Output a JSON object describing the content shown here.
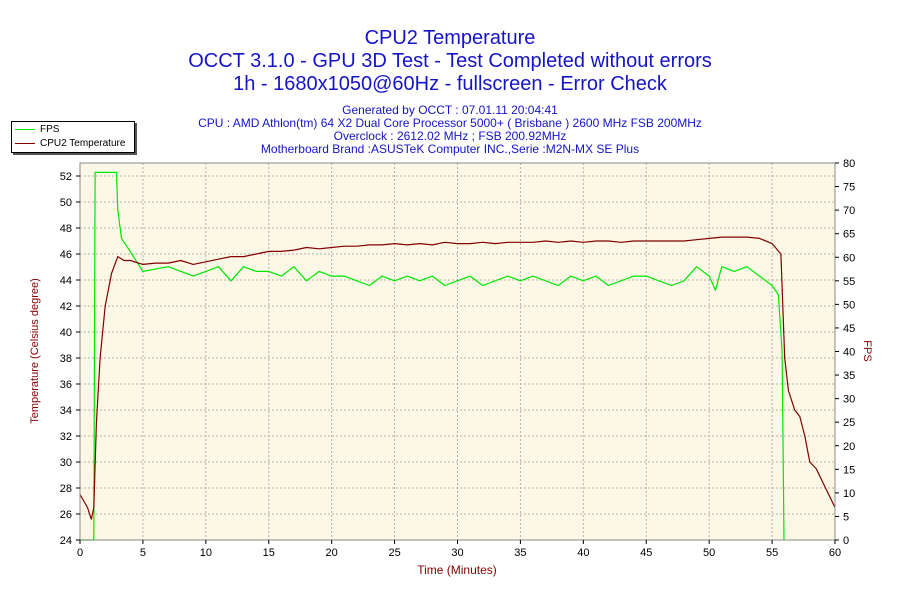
{
  "header": {
    "title": "CPU2 Temperature",
    "subtitle1": "OCCT 3.1.0 - GPU 3D Test - Test Completed without errors",
    "subtitle2": "1h - 1680x1050@60Hz - fullscreen - Error Check"
  },
  "info": {
    "generated": "Generated by OCCT : 07.01.11 20:04:41",
    "cpu": "CPU : AMD Athlon(tm) 64 X2 Dual Core Processor 5000+ ( Brisbane ) 2600 MHz FSB 200MHz",
    "overclock": "Overclock : 2612.02 MHz ; FSB 200.92MHz",
    "motherboard": "Motherboard Brand :ASUSTeK Computer INC.,Serie :M2N-MX SE Plus"
  },
  "colors": {
    "fps": "#00e600",
    "temp": "#800000",
    "plot_bg": "#fdf8e6",
    "title": "#1414c8"
  },
  "chart_data": {
    "type": "line",
    "xlabel": "Time (Minutes)",
    "ylabel": "Temperature (Celsius degree)",
    "y2label": "FPS",
    "xlim": [
      0,
      60
    ],
    "ylim": [
      24,
      53
    ],
    "y2lim": [
      0,
      80
    ],
    "grid": true,
    "legend_position": "top-left",
    "x_ticks": [
      "0",
      "5",
      "10",
      "15",
      "20",
      "25",
      "30",
      "35",
      "40",
      "45",
      "50",
      "55",
      "60"
    ],
    "y_ticks": [
      "24",
      "26",
      "28",
      "30",
      "32",
      "34",
      "36",
      "38",
      "40",
      "42",
      "44",
      "46",
      "48",
      "50",
      "52"
    ],
    "y2_ticks": [
      "0",
      "5",
      "10",
      "15",
      "20",
      "25",
      "30",
      "35",
      "40",
      "45",
      "50",
      "55",
      "60",
      "65",
      "70",
      "75",
      "80"
    ],
    "series": [
      {
        "name": "FPS",
        "axis": "right",
        "points": [
          [
            0,
            0
          ],
          [
            1.1,
            0
          ],
          [
            1.2,
            78
          ],
          [
            2.9,
            78
          ],
          [
            3.0,
            70
          ],
          [
            3.3,
            64
          ],
          [
            3.8,
            62
          ],
          [
            5,
            57
          ],
          [
            7,
            58
          ],
          [
            9,
            56
          ],
          [
            10,
            57
          ],
          [
            11,
            58
          ],
          [
            12,
            55
          ],
          [
            13,
            58
          ],
          [
            14,
            57
          ],
          [
            15,
            57
          ],
          [
            16,
            56
          ],
          [
            17,
            58
          ],
          [
            18,
            55
          ],
          [
            19,
            57
          ],
          [
            20,
            56
          ],
          [
            21,
            56
          ],
          [
            22,
            55
          ],
          [
            23,
            54
          ],
          [
            24,
            56
          ],
          [
            25,
            55
          ],
          [
            26,
            56
          ],
          [
            27,
            55
          ],
          [
            28,
            56
          ],
          [
            29,
            54
          ],
          [
            30,
            55
          ],
          [
            31,
            56
          ],
          [
            32,
            54
          ],
          [
            33,
            55
          ],
          [
            34,
            56
          ],
          [
            35,
            55
          ],
          [
            36,
            56
          ],
          [
            37,
            55
          ],
          [
            38,
            54
          ],
          [
            39,
            56
          ],
          [
            40,
            55
          ],
          [
            41,
            56
          ],
          [
            42,
            54
          ],
          [
            43,
            55
          ],
          [
            44,
            56
          ],
          [
            45,
            56
          ],
          [
            46,
            55
          ],
          [
            47,
            54
          ],
          [
            48,
            55
          ],
          [
            49,
            58
          ],
          [
            50,
            56
          ],
          [
            50.5,
            53
          ],
          [
            51,
            58
          ],
          [
            52,
            57
          ],
          [
            53,
            58
          ],
          [
            54,
            56
          ],
          [
            55,
            54
          ],
          [
            55.5,
            52
          ],
          [
            55.8,
            40
          ],
          [
            55.95,
            0
          ]
        ]
      },
      {
        "name": "CPU2 Temperature",
        "axis": "left",
        "points": [
          [
            0,
            27.5
          ],
          [
            0.3,
            27
          ],
          [
            0.6,
            26.5
          ],
          [
            0.9,
            25.6
          ],
          [
            1.1,
            26.5
          ],
          [
            1.3,
            33
          ],
          [
            1.6,
            38
          ],
          [
            2.0,
            42
          ],
          [
            2.5,
            44.5
          ],
          [
            3.0,
            45.8
          ],
          [
            3.5,
            45.5
          ],
          [
            4,
            45.5
          ],
          [
            5,
            45.2
          ],
          [
            6,
            45.3
          ],
          [
            7,
            45.3
          ],
          [
            8,
            45.5
          ],
          [
            9,
            45.2
          ],
          [
            10,
            45.4
          ],
          [
            11,
            45.6
          ],
          [
            12,
            45.8
          ],
          [
            13,
            45.8
          ],
          [
            14,
            46.0
          ],
          [
            15,
            46.2
          ],
          [
            16,
            46.2
          ],
          [
            17,
            46.3
          ],
          [
            18,
            46.5
          ],
          [
            19,
            46.4
          ],
          [
            20,
            46.5
          ],
          [
            21,
            46.6
          ],
          [
            22,
            46.6
          ],
          [
            23,
            46.7
          ],
          [
            24,
            46.7
          ],
          [
            25,
            46.8
          ],
          [
            26,
            46.7
          ],
          [
            27,
            46.8
          ],
          [
            28,
            46.7
          ],
          [
            29,
            46.9
          ],
          [
            30,
            46.8
          ],
          [
            31,
            46.8
          ],
          [
            32,
            46.9
          ],
          [
            33,
            46.8
          ],
          [
            34,
            46.9
          ],
          [
            35,
            46.9
          ],
          [
            36,
            46.9
          ],
          [
            37,
            47.0
          ],
          [
            38,
            46.9
          ],
          [
            39,
            47.0
          ],
          [
            40,
            46.9
          ],
          [
            41,
            47.0
          ],
          [
            42,
            47.0
          ],
          [
            43,
            46.9
          ],
          [
            44,
            47.0
          ],
          [
            45,
            47.0
          ],
          [
            46,
            47.0
          ],
          [
            47,
            47.0
          ],
          [
            48,
            47.0
          ],
          [
            49,
            47.1
          ],
          [
            50,
            47.2
          ],
          [
            51,
            47.3
          ],
          [
            52,
            47.3
          ],
          [
            53,
            47.3
          ],
          [
            54,
            47.2
          ],
          [
            55,
            46.8
          ],
          [
            55.7,
            46.0
          ],
          [
            56.0,
            38
          ],
          [
            56.3,
            35.5
          ],
          [
            56.8,
            34
          ],
          [
            57.2,
            33.5
          ],
          [
            57.6,
            32
          ],
          [
            58,
            30
          ],
          [
            58.5,
            29.5
          ],
          [
            59,
            28.5
          ],
          [
            59.5,
            27.5
          ],
          [
            60,
            26.5
          ]
        ]
      }
    ]
  }
}
